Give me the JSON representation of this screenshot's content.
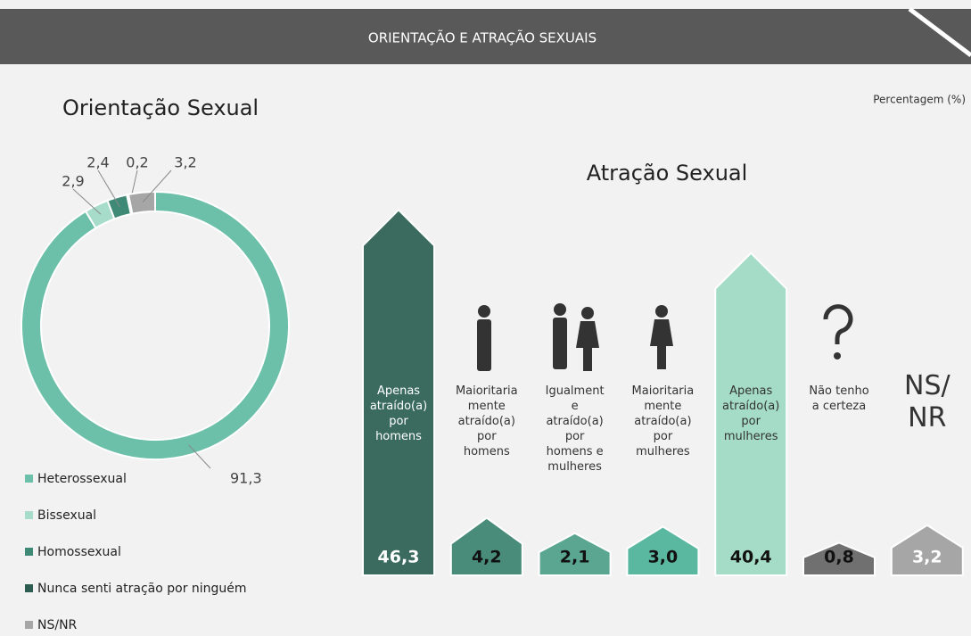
{
  "header": {
    "title": "ORIENTAÇÃO E ATRAÇÃO SEXUAIS",
    "note": "Percentagem (%)"
  },
  "chart_data": [
    {
      "type": "pie",
      "title": "Orientação Sexual",
      "categories": [
        "Heterossexual",
        "Bissexual",
        "Homossexual",
        "Nunca senti atração por ninguém",
        "NS/NR"
      ],
      "values": [
        91.3,
        2.9,
        2.4,
        0.2,
        3.2
      ],
      "value_labels": [
        "91,3",
        "2,9",
        "2,4",
        "0,2",
        "3,2"
      ],
      "colors": [
        "#6cbfa8",
        "#a8dcca",
        "#3f8a76",
        "#2d5c50",
        "#a6a6a6"
      ]
    },
    {
      "type": "bar",
      "title": "Atração Sexual",
      "categories": [
        "Apenas atraído(a) por homens",
        "Maioritariamente atraído(a) por homens",
        "Igualmente atraído(a) por homens e mulheres",
        "Maioritariamente atraído(a) por mulheres",
        "Apenas atraído(a) por mulheres",
        "Não tenho a certeza",
        "NS/NR"
      ],
      "values": [
        46.3,
        4.2,
        2.1,
        3.0,
        40.4,
        0.8,
        3.2
      ],
      "value_labels": [
        "46,3",
        "4,2",
        "2,1",
        "3,0",
        "40,4",
        "0,8",
        "3,2"
      ],
      "colors": [
        "#3a6b5e",
        "#4a8c7a",
        "#5aa690",
        "#5ab8a0",
        "#a5dcc8",
        "#707070",
        "#a6a6a6"
      ]
    }
  ]
}
